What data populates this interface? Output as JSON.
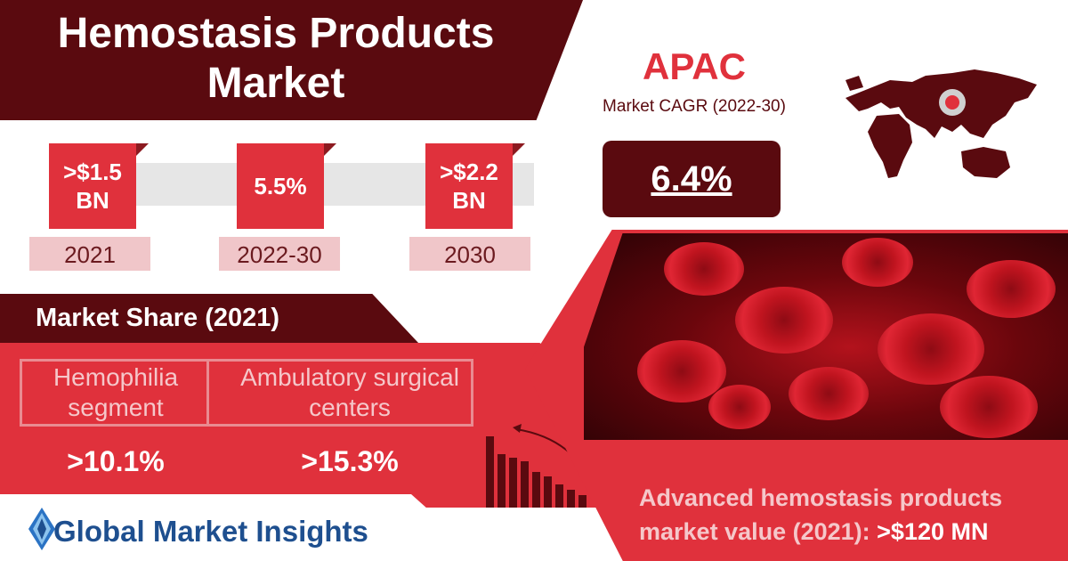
{
  "title": {
    "line1": "Hemostasis Products",
    "line2": "Market"
  },
  "stats": [
    {
      "value": ">$1.5 BN",
      "year": "2021"
    },
    {
      "value": "5.5%",
      "year": "2022-30"
    },
    {
      "value": ">$2.2 BN",
      "year": "2030"
    }
  ],
  "share": {
    "heading": "Market Share (2021)",
    "items": [
      {
        "label": "Hemophilia segment",
        "value": ">10.1%"
      },
      {
        "label": "Ambulatory surgical centers",
        "value": ">15.3%"
      }
    ]
  },
  "region": {
    "name": "APAC",
    "subtitle": "Market CAGR (2022-30)",
    "cagr": "6.4%"
  },
  "advanced": {
    "text": "Advanced hemostasis products market value (2021):",
    "value": ">$120 MN"
  },
  "logo": {
    "text": "Global Market Insights"
  },
  "colors": {
    "dark": "#5a0a0f",
    "red": "#e0313c",
    "pink": "#f0c6c9",
    "logo_blue": "#1e4f8f"
  }
}
